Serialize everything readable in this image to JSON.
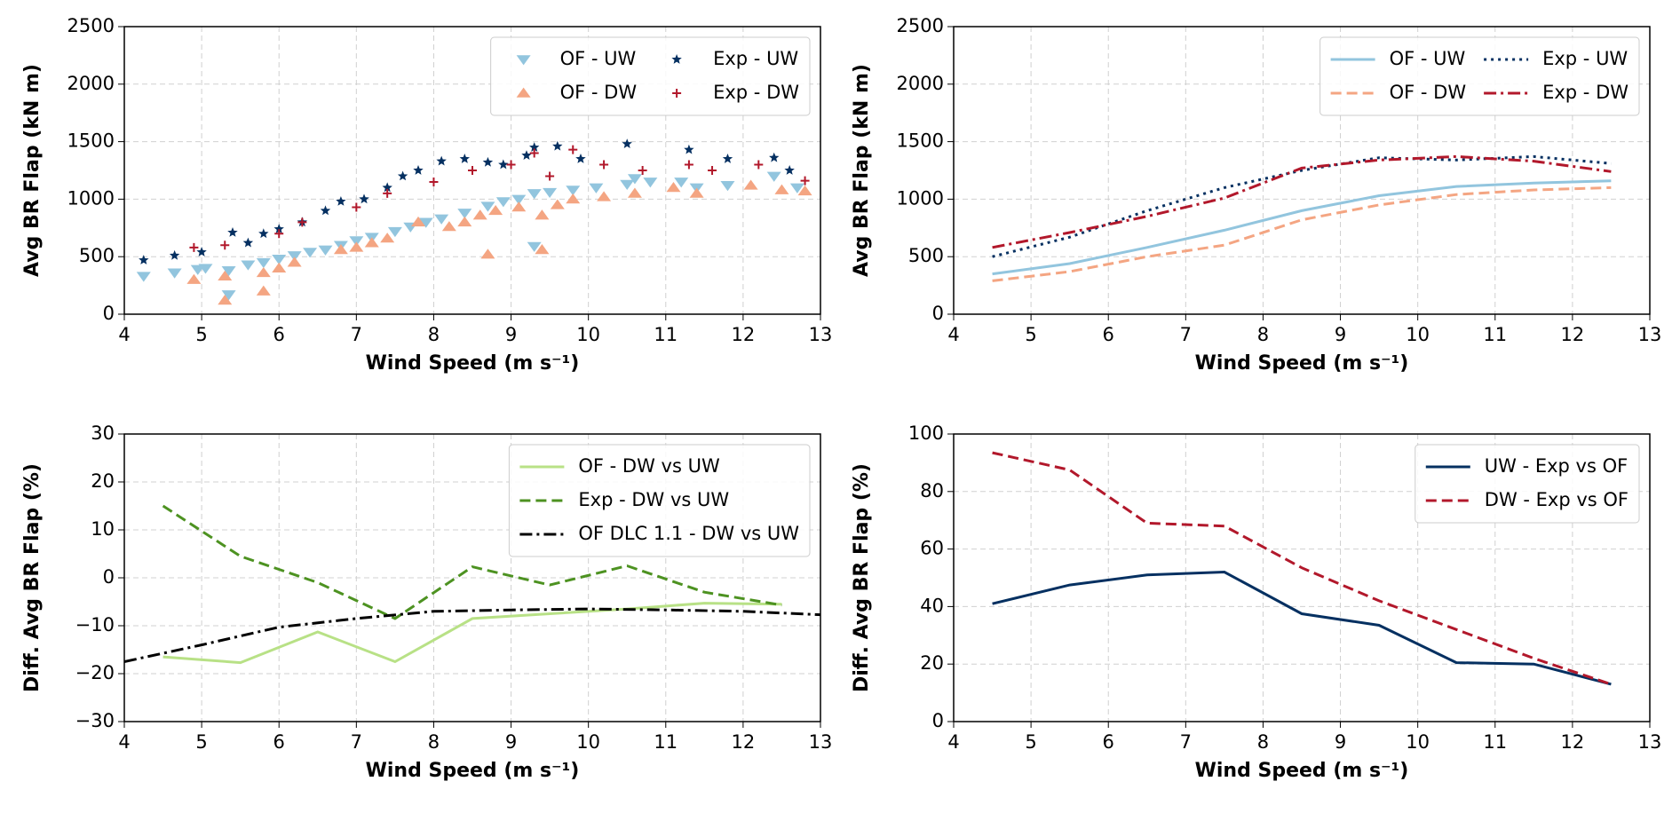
{
  "chart_data": [
    {
      "type": "scatter",
      "ylabel": "Avg BR Flap (kN m)",
      "xlabel": "Wind Speed (m s⁻¹)",
      "xlim": [
        4,
        13
      ],
      "xticks": [
        4,
        5,
        6,
        7,
        8,
        9,
        10,
        11,
        12,
        13
      ],
      "ylim": [
        0,
        2500
      ],
      "yticks": [
        0,
        500,
        1000,
        1500,
        2000,
        2500
      ],
      "grid": true,
      "legend": "upper right",
      "legend_columns": 2,
      "series": [
        {
          "name": "OF - UW",
          "color": "#92c5de",
          "marker": "v",
          "x": [
            4.25,
            4.65,
            4.95,
            5.05,
            5.35,
            5.35,
            5.6,
            5.8,
            6,
            6.2,
            6.4,
            6.6,
            6.8,
            7,
            7.2,
            7.5,
            7.7,
            7.9,
            8.1,
            8.4,
            8.7,
            8.9,
            9.1,
            9.3,
            9.3,
            9.5,
            9.8,
            10.1,
            10.5,
            10.6,
            10.8,
            11.2,
            11.4,
            11.8,
            12.4,
            12.7
          ],
          "values": [
            330,
            360,
            390,
            400,
            380,
            170,
            430,
            450,
            480,
            510,
            540,
            560,
            600,
            640,
            670,
            720,
            760,
            800,
            830,
            880,
            940,
            980,
            1000,
            1050,
            590,
            1060,
            1080,
            1100,
            1130,
            1180,
            1150,
            1150,
            1100,
            1120,
            1200,
            1100
          ]
        },
        {
          "name": "OF - DW",
          "color": "#f4a582",
          "marker": "^",
          "x": [
            4.9,
            5.3,
            5.3,
            5.8,
            5.8,
            6,
            6.2,
            6.8,
            7,
            7.2,
            7.4,
            7.8,
            8.2,
            8.4,
            8.6,
            8.7,
            8.8,
            9.1,
            9.4,
            9.4,
            9.6,
            9.8,
            10.2,
            10.6,
            11.1,
            11.4,
            12.1,
            12.5,
            12.8
          ],
          "values": [
            300,
            120,
            330,
            200,
            360,
            400,
            450,
            560,
            580,
            620,
            660,
            800,
            760,
            800,
            860,
            520,
            900,
            930,
            560,
            860,
            950,
            1000,
            1020,
            1050,
            1100,
            1050,
            1120,
            1080,
            1070
          ]
        },
        {
          "name": "Exp - UW",
          "color": "#053061",
          "marker": "*",
          "x": [
            4.25,
            4.65,
            5,
            5.4,
            5.6,
            5.8,
            6,
            6.3,
            6.6,
            6.8,
            7.1,
            7.4,
            7.6,
            7.8,
            8.1,
            8.4,
            8.7,
            8.9,
            9.2,
            9.3,
            9.6,
            9.9,
            10.5,
            11.3,
            11.8,
            12.4,
            12.6
          ],
          "values": [
            470,
            510,
            540,
            710,
            620,
            700,
            740,
            800,
            900,
            980,
            1000,
            1100,
            1200,
            1250,
            1330,
            1350,
            1320,
            1300,
            1380,
            1450,
            1460,
            1350,
            1480,
            1430,
            1350,
            1360,
            1250
          ]
        },
        {
          "name": "Exp - DW",
          "color": "#b2182b",
          "marker": "+",
          "x": [
            4.9,
            5.3,
            6,
            6.3,
            7,
            7.4,
            8,
            8.5,
            9,
            9.3,
            9.5,
            9.8,
            10.2,
            10.7,
            11.3,
            11.6,
            12.2,
            12.8
          ],
          "values": [
            580,
            600,
            700,
            800,
            930,
            1050,
            1150,
            1250,
            1300,
            1400,
            1200,
            1430,
            1300,
            1250,
            1300,
            1250,
            1300,
            1160
          ]
        }
      ]
    },
    {
      "type": "line",
      "ylabel": "Avg BR Flap (kN m)",
      "xlabel": "Wind Speed (m s⁻¹)",
      "xlim": [
        4,
        13
      ],
      "xticks": [
        4,
        5,
        6,
        7,
        8,
        9,
        10,
        11,
        12,
        13
      ],
      "ylim": [
        0,
        2500
      ],
      "yticks": [
        0,
        500,
        1000,
        1500,
        2000,
        2500
      ],
      "grid": true,
      "legend": "upper right",
      "legend_columns": 2,
      "series": [
        {
          "name": "OF - UW",
          "color": "#92c5de",
          "linestyle": "solid",
          "x": [
            4.5,
            5.5,
            6.5,
            7.5,
            8.5,
            9.5,
            10.5,
            11.5,
            12.5
          ],
          "values": [
            350,
            440,
            580,
            730,
            900,
            1030,
            1110,
            1140,
            1160
          ]
        },
        {
          "name": "OF - DW",
          "color": "#f4a582",
          "linestyle": "dashed",
          "x": [
            4.5,
            5.5,
            6.5,
            7.5,
            8.5,
            9.5,
            10.5,
            11.5,
            12.5
          ],
          "values": [
            290,
            370,
            500,
            600,
            820,
            950,
            1040,
            1080,
            1100
          ]
        },
        {
          "name": "Exp - UW",
          "color": "#053061",
          "linestyle": "dotted",
          "x": [
            4.5,
            5.5,
            6.5,
            7.5,
            8.5,
            9.5,
            10.5,
            11.5,
            12.5
          ],
          "values": [
            500,
            670,
            900,
            1100,
            1250,
            1360,
            1340,
            1370,
            1310
          ]
        },
        {
          "name": "Exp - DW",
          "color": "#b2182b",
          "linestyle": "dashdot",
          "x": [
            4.5,
            5.5,
            6.5,
            7.5,
            8.5,
            9.5,
            10.5,
            11.5,
            12.5
          ],
          "values": [
            580,
            710,
            850,
            1010,
            1270,
            1340,
            1370,
            1330,
            1240
          ]
        }
      ]
    },
    {
      "type": "line",
      "ylabel": "Diff. Avg BR Flap (%)",
      "xlabel": "Wind Speed (m s⁻¹)",
      "xlim": [
        4,
        13
      ],
      "xticks": [
        4,
        5,
        6,
        7,
        8,
        9,
        10,
        11,
        12,
        13
      ],
      "ylim": [
        -30,
        30
      ],
      "yticks": [
        {
          "value": -30,
          "label": "−30"
        },
        {
          "value": -20,
          "label": "−20"
        },
        {
          "value": -10,
          "label": "−10"
        },
        0,
        10,
        20,
        30
      ],
      "grid": true,
      "legend": "upper right",
      "legend_columns": 1,
      "series": [
        {
          "name": "OF - DW vs UW",
          "color": "#b8e186",
          "linestyle": "solid",
          "x": [
            4.5,
            5.5,
            6.5,
            7.5,
            8.5,
            9.5,
            10.5,
            11.5,
            12.5
          ],
          "values": [
            -16.5,
            -17.7,
            -11.3,
            -17.5,
            -8.5,
            -7.5,
            -6.5,
            -5.3,
            -5.5
          ]
        },
        {
          "name": "Exp - DW vs UW",
          "color": "#4d9221",
          "linestyle": "dashed",
          "x": [
            4.5,
            5.5,
            6.5,
            7.5,
            8.5,
            9.5,
            10.5,
            11.5,
            12.5
          ],
          "values": [
            15,
            4.5,
            -1,
            -8.5,
            2.3,
            -1.5,
            2.5,
            -3,
            -5.7
          ]
        },
        {
          "name": "OF DLC 1.1 - DW vs UW",
          "color": "#000000",
          "linestyle": "dashdot",
          "x": [
            4,
            5,
            6,
            7,
            8,
            9,
            10,
            11,
            12,
            13
          ],
          "values": [
            -17.5,
            -14,
            -10.3,
            -8.5,
            -7,
            -6.7,
            -6.5,
            -6.7,
            -7,
            -7.7
          ]
        }
      ]
    },
    {
      "type": "line",
      "ylabel": "Diff. Avg BR Flap (%)",
      "xlabel": "Wind Speed (m s⁻¹)",
      "xlim": [
        4,
        13
      ],
      "xticks": [
        4,
        5,
        6,
        7,
        8,
        9,
        10,
        11,
        12,
        13
      ],
      "ylim": [
        0,
        100
      ],
      "yticks": [
        0,
        20,
        40,
        60,
        80,
        100
      ],
      "grid": true,
      "legend": "upper right",
      "legend_columns": 1,
      "series": [
        {
          "name": "UW - Exp vs OF",
          "color": "#053061",
          "linestyle": "solid",
          "x": [
            4.5,
            5.5,
            6.5,
            7.5,
            8.5,
            9.5,
            10.5,
            11.5,
            12.5
          ],
          "values": [
            41,
            47.5,
            51,
            52,
            37.5,
            33.5,
            20.5,
            20,
            13
          ]
        },
        {
          "name": "DW - Exp vs OF",
          "color": "#b2182b",
          "linestyle": "dashed",
          "x": [
            4.5,
            5.5,
            6.5,
            7.5,
            8.5,
            9.5,
            10.5,
            11.5,
            12.5
          ],
          "values": [
            93.5,
            87.5,
            69,
            68,
            53.5,
            42,
            32,
            22,
            13
          ]
        }
      ]
    }
  ]
}
